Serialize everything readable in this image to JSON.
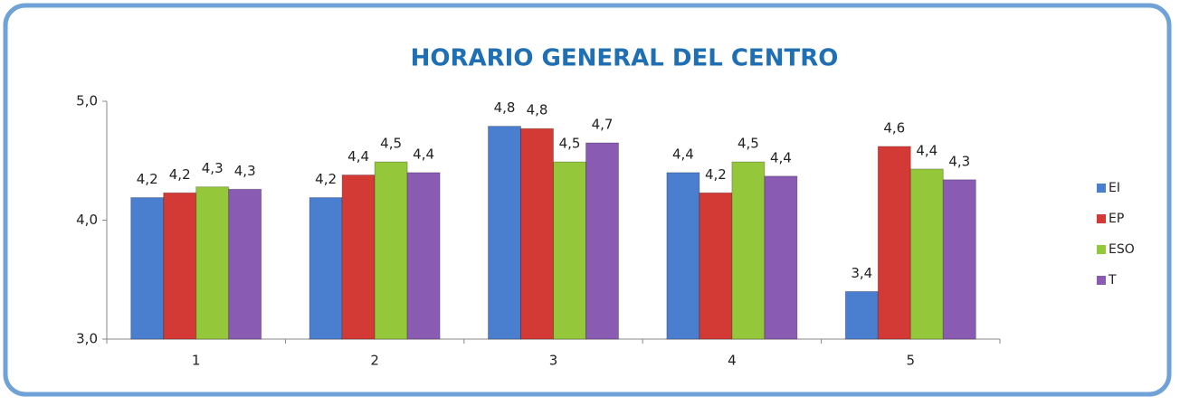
{
  "chart_data": {
    "type": "bar",
    "title": "HORARIO GENERAL DEL CENTRO",
    "categories": [
      "1",
      "2",
      "3",
      "4",
      "5"
    ],
    "series": [
      {
        "name": "EI",
        "color": "#4a7fd0",
        "values": [
          4.19,
          4.19,
          4.79,
          4.4,
          3.4
        ],
        "value_labels": [
          "4,2",
          "4,2",
          "4,8",
          "4,4",
          "3,4"
        ]
      },
      {
        "name": "EP",
        "color": "#d33a36",
        "values": [
          4.23,
          4.38,
          4.77,
          4.23,
          4.62
        ],
        "value_labels": [
          "4,2",
          "4,4",
          "4,8",
          "4,2",
          "4,6"
        ]
      },
      {
        "name": "ESO",
        "color": "#94c83a",
        "values": [
          4.28,
          4.49,
          4.49,
          4.49,
          4.43
        ],
        "value_labels": [
          "4,3",
          "4,5",
          "4,5",
          "4,5",
          "4,4"
        ]
      },
      {
        "name": "T",
        "color": "#8a5bb3",
        "values": [
          4.26,
          4.4,
          4.65,
          4.37,
          4.34
        ],
        "value_labels": [
          "4,3",
          "4,4",
          "4,7",
          "4,4",
          "4,3"
        ]
      }
    ],
    "ylim": [
      3,
      5
    ],
    "yticks": [
      {
        "value": 3,
        "label": "3,0"
      },
      {
        "value": 4,
        "label": "4,0"
      },
      {
        "value": 5,
        "label": "5,0"
      }
    ],
    "grid": false,
    "legend": "right"
  }
}
